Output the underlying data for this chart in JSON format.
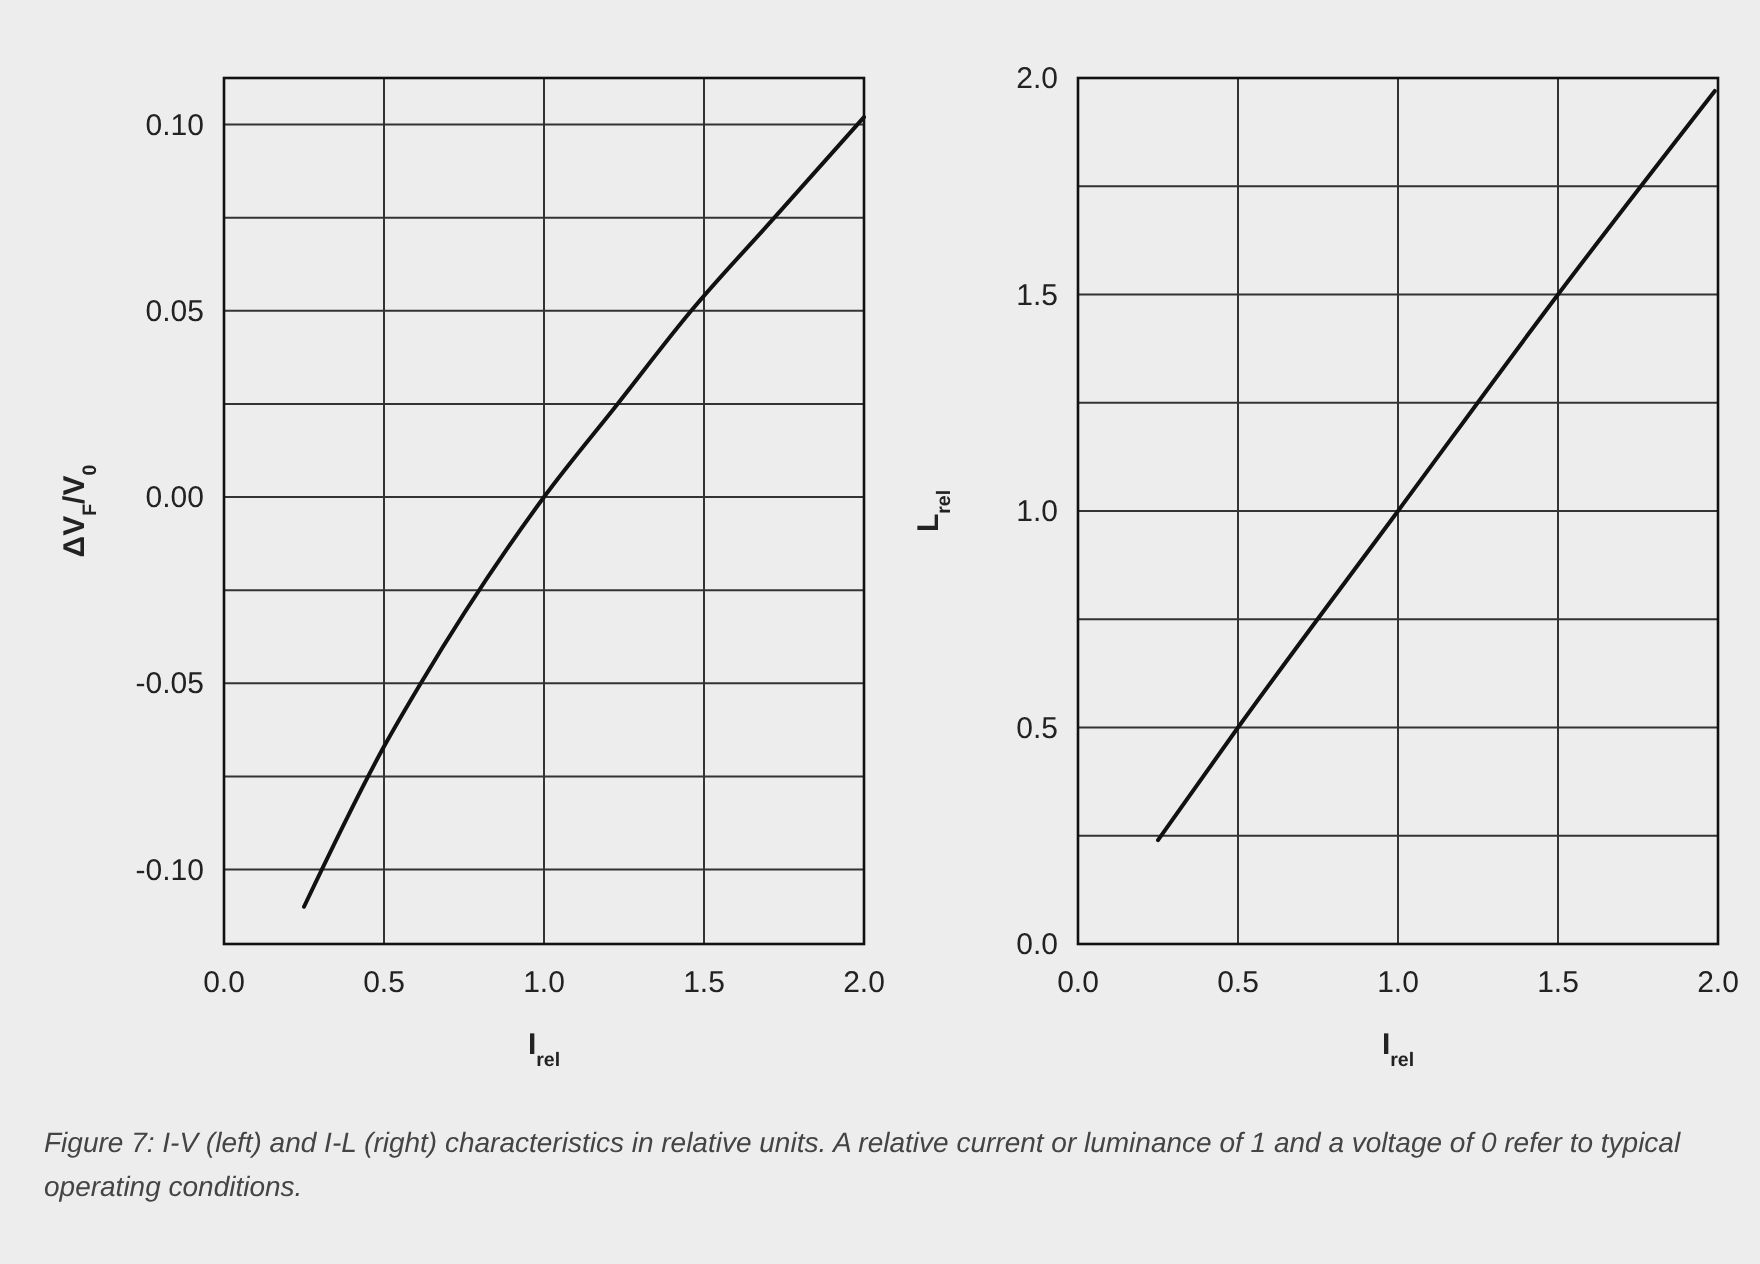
{
  "chart_data": [
    {
      "type": "line",
      "xlabel": "I$_{rel}$",
      "ylabel": "ΔV$_{F}$/V$_{0}$",
      "xlim": [
        0,
        2
      ],
      "ylim": [
        -0.12,
        0.1125
      ],
      "xticks": [
        {
          "value": 0,
          "label": "0.0"
        },
        {
          "value": 0.5,
          "label": "0.5"
        },
        {
          "value": 1,
          "label": "1.0"
        },
        {
          "value": 1.5,
          "label": "1.5"
        },
        {
          "value": 2,
          "label": "2.0"
        }
      ],
      "yticks": [
        {
          "value": -0.1,
          "label": "-0.10"
        },
        {
          "value": -0.075,
          "label": null
        },
        {
          "value": -0.05,
          "label": "-0.05"
        },
        {
          "value": -0.025,
          "label": null
        },
        {
          "value": 0,
          "label": "0.00"
        },
        {
          "value": 0.025,
          "label": null
        },
        {
          "value": 0.05,
          "label": "0.05"
        },
        {
          "value": 0.075,
          "label": null
        },
        {
          "value": 0.1,
          "label": "0.10"
        }
      ],
      "grid": true,
      "line_style": "solid",
      "marker": "none",
      "series": [
        {
          "color": "#111111",
          "x": [
            0.25,
            0.5,
            0.615,
            1.0,
            1.23,
            1.46,
            1.72,
            2.0
          ],
          "values": [
            -0.11,
            -0.067,
            -0.05,
            0,
            0.025,
            0.05,
            0.075,
            0.102
          ]
        }
      ],
      "annotations": [
        "Figure 7: I-V (left) and I-L (right) characteristics in relative units. A relative current or luminance of 1 and a voltage of 0 refer to typical operating conditions."
      ]
    },
    {
      "type": "line",
      "xlabel": "I$_{rel}$",
      "ylabel": "L$_{rel}$",
      "xlim": [
        0,
        2
      ],
      "ylim": [
        0,
        2
      ],
      "xticks": [
        {
          "value": 0,
          "label": "0.0"
        },
        {
          "value": 0.5,
          "label": "0.5"
        },
        {
          "value": 1,
          "label": "1.0"
        },
        {
          "value": 1.5,
          "label": "1.5"
        },
        {
          "value": 2,
          "label": "2.0"
        }
      ],
      "yticks": [
        {
          "value": 0,
          "label": "0.0"
        },
        {
          "value": 0.25,
          "label": null
        },
        {
          "value": 0.5,
          "label": "0.5"
        },
        {
          "value": 0.75,
          "label": null
        },
        {
          "value": 1,
          "label": "1.0"
        },
        {
          "value": 1.25,
          "label": null
        },
        {
          "value": 1.5,
          "label": "1.5"
        },
        {
          "value": 1.75,
          "label": null
        },
        {
          "value": 2,
          "label": "2.0"
        }
      ],
      "grid": true,
      "line_style": "solid",
      "marker": "none",
      "series": [
        {
          "color": "#111111",
          "x": [
            0.25,
            0.5,
            1.0,
            1.5,
            1.99
          ],
          "values": [
            0.24,
            0.5,
            1.0,
            1.5,
            1.97
          ]
        }
      ]
    }
  ]
}
